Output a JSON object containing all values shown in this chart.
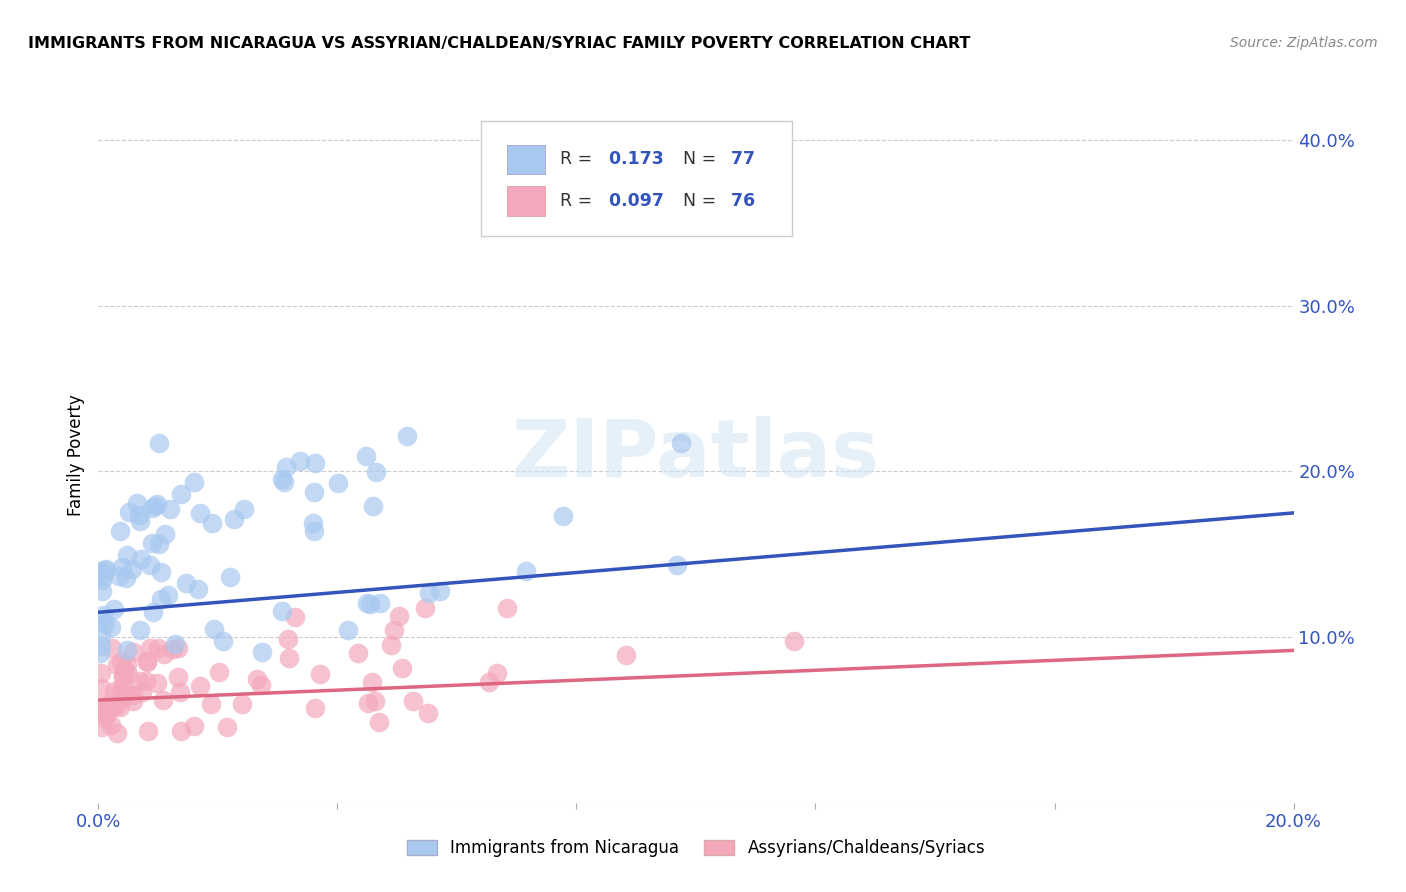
{
  "title": "IMMIGRANTS FROM NICARAGUA VS ASSYRIAN/CHALDEAN/SYRIAC FAMILY POVERTY CORRELATION CHART",
  "source": "Source: ZipAtlas.com",
  "ylabel": "Family Poverty",
  "xlim": [
    0.0,
    0.2
  ],
  "ylim": [
    0.0,
    0.42
  ],
  "blue_color": "#A8C8F0",
  "pink_color": "#F4A8BC",
  "blue_line_color": "#3355BB",
  "pink_line_color": "#DD6680",
  "blue_label": "Immigrants from Nicaragua",
  "pink_label": "Assyrians/Chaldeans/Syriacs",
  "watermark": "ZIPatlas",
  "blue_R": "0.173",
  "blue_N": "77",
  "pink_R": "0.097",
  "pink_N": "76"
}
